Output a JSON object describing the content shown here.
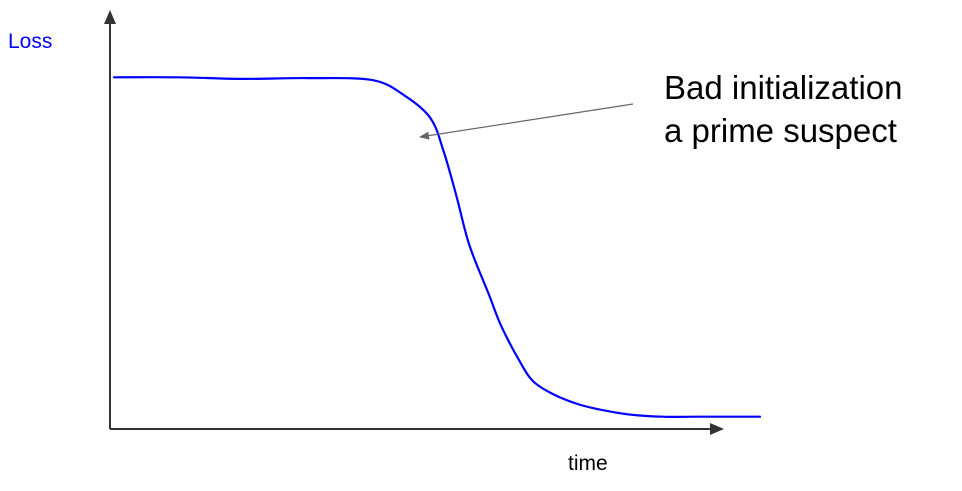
{
  "chart_data": {
    "type": "line",
    "xlabel": "time",
    "ylabel": "Loss",
    "grid": false,
    "legend": "none",
    "x": [
      0,
      0.1,
      0.2,
      0.3,
      0.4,
      0.45,
      0.49,
      0.51,
      0.53,
      0.55,
      0.58,
      0.6,
      0.63,
      0.65,
      0.68,
      0.72,
      0.76,
      0.8,
      0.85,
      0.9,
      0.95,
      1.0
    ],
    "series": [
      {
        "values": [
          0.86,
          0.86,
          0.856,
          0.858,
          0.853,
          0.815,
          0.76,
          0.68,
          0.57,
          0.45,
          0.33,
          0.25,
          0.16,
          0.115,
          0.085,
          0.06,
          0.045,
          0.035,
          0.03,
          0.03,
          0.03,
          0.03
        ],
        "color": "#0000ff"
      }
    ],
    "annotations": [
      {
        "lines": [
          "Bad initialization",
          "a prime suspect"
        ],
        "arrow_target": "plateau end"
      }
    ],
    "colors": {
      "line": "#0000ff",
      "axis": "#333333",
      "arrow": "#666666",
      "ylabel": "#0000ff",
      "text": "#000000"
    }
  }
}
